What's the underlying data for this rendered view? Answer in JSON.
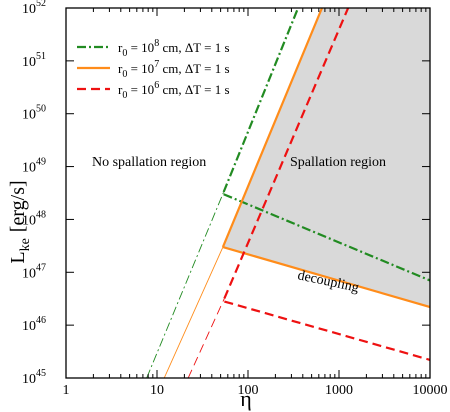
{
  "chart_data": {
    "type": "line",
    "xlabel": "η",
    "ylabel_main": "L",
    "ylabel_sub": "ke",
    "ylabel_unit": "[erg/s]",
    "x_scale": "log",
    "y_scale": "log",
    "xlim": [
      1,
      10000
    ],
    "ylim": [
      1e+45,
      1e+52
    ],
    "x_ticks": [
      {
        "value": 1,
        "label": "1"
      },
      {
        "value": 10,
        "label": "10"
      },
      {
        "value": 100,
        "label": "100"
      },
      {
        "value": 1000,
        "label": "1000"
      },
      {
        "value": 10000,
        "label": "10000"
      }
    ],
    "y_ticks": [
      {
        "value": 1e+45,
        "base": "10",
        "exp": "45"
      },
      {
        "value": 1e+46,
        "base": "10",
        "exp": "46"
      },
      {
        "value": 1e+47,
        "base": "10",
        "exp": "47"
      },
      {
        "value": 1e+48,
        "base": "10",
        "exp": "48"
      },
      {
        "value": 1e+49,
        "base": "10",
        "exp": "49"
      },
      {
        "value": 1e+50,
        "base": "10",
        "exp": "50"
      },
      {
        "value": 1e+51,
        "base": "10",
        "exp": "51"
      },
      {
        "value": 1e+52,
        "base": "10",
        "exp": "52"
      }
    ],
    "series": [
      {
        "legend_pre": "r",
        "legend_sub": "0",
        "legend_mid": " = 10",
        "legend_sup": "8",
        "legend_post": " cm, ΔT = 1 s",
        "color": "#228b22",
        "dash": "9,3,2,3",
        "thin_segment": [
          [
            7.7,
            1e+45
          ],
          [
            54,
            3.3e+48
          ]
        ],
        "thick_segment": [
          [
            54,
            3.3e+48
          ],
          [
            355,
            1e+52
          ]
        ],
        "decoupling_segment": [
          [
            54,
            3e+48
          ],
          [
            10000,
            7e+46
          ]
        ]
      },
      {
        "legend_pre": "r",
        "legend_sub": "0",
        "legend_mid": " = 10",
        "legend_sup": "7",
        "legend_post": " cm, ΔT = 1 s",
        "color": "#ff8c1a",
        "dash": "",
        "thin_segment": [
          [
            12,
            1e+45
          ],
          [
            53,
            3e+47
          ]
        ],
        "thick_segment": [
          [
            53,
            3e+47
          ],
          [
            650,
            1e+52
          ]
        ],
        "decoupling_segment": [
          [
            53,
            3e+47
          ],
          [
            10000,
            2.2e+46
          ]
        ]
      },
      {
        "legend_pre": "r",
        "legend_sub": "0",
        "legend_mid": " = 10",
        "legend_sup": "6",
        "legend_post": " cm, ΔT = 1 s",
        "color": "#ee1111",
        "dash": "9,5",
        "thin_segment": [
          [
            22,
            1e+45
          ],
          [
            55,
            3.2e+46
          ]
        ],
        "thick_segment": [
          [
            55,
            3.2e+46
          ],
          [
            1260,
            1e+52
          ]
        ],
        "decoupling_segment": [
          [
            55,
            2.8e+46
          ],
          [
            10000,
            2.2e+45
          ]
        ]
      }
    ],
    "spallation_region": {
      "points": [
        [
          53,
          3e+47
        ],
        [
          650,
          1e+52
        ],
        [
          10000,
          1e+52
        ],
        [
          10000,
          2.2e+46
        ]
      ],
      "fill": "#d9d9d9"
    },
    "annotations": {
      "left_region": "No spallation region",
      "right_region": "Spallation region",
      "decoupling": "decoupling",
      "decoupling_color": "#ff8c1a"
    },
    "legend_placement": "top-left"
  }
}
